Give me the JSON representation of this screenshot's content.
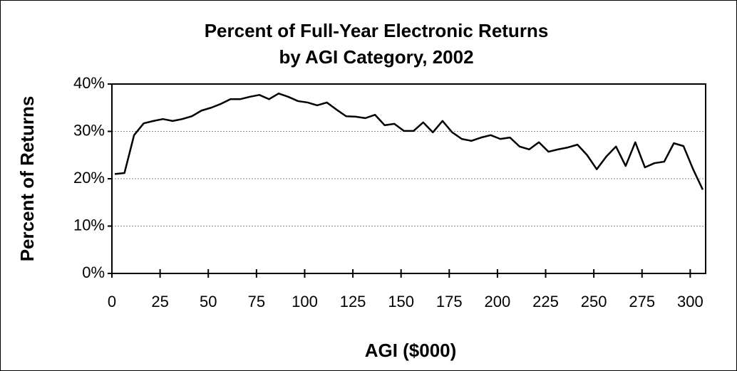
{
  "chart_data": {
    "type": "line",
    "title": [
      "Percent of Full-Year Electronic Returns",
      "by AGI Category, 2002"
    ],
    "xlabel": "AGI ($000)",
    "ylabel": "Percent of Returns",
    "x": [
      1.5,
      6.5,
      11.5,
      16.5,
      21.5,
      26.5,
      31.5,
      36.5,
      41.5,
      46.5,
      51.5,
      56.5,
      61.5,
      66.5,
      71.5,
      76.5,
      81.5,
      86.5,
      91.5,
      96.5,
      101.5,
      106.5,
      111.5,
      116.5,
      121.5,
      126.5,
      131.5,
      136.5,
      141.5,
      146.5,
      151.5,
      156.5,
      161.5,
      166.5,
      171.5,
      176.5,
      181.5,
      186.5,
      191.5,
      196.5,
      201.5,
      206.5,
      211.5,
      216.5,
      221.5,
      226.5,
      231.5,
      236.5,
      241.5,
      246.5,
      251.5,
      256.5,
      261.5,
      266.5,
      271.5,
      276.5,
      281.5,
      286.5,
      291.5,
      296.5,
      301.5,
      306.5
    ],
    "series": [
      {
        "name": "Percent of Returns",
        "color": "#000000",
        "values": [
          21.0,
          21.2,
          29.2,
          31.7,
          32.2,
          32.6,
          32.2,
          32.6,
          33.2,
          34.4,
          35.0,
          35.8,
          36.8,
          36.8,
          37.3,
          37.7,
          36.8,
          38.0,
          37.3,
          36.4,
          36.1,
          35.5,
          36.1,
          34.6,
          33.2,
          33.1,
          32.8,
          33.5,
          31.3,
          31.6,
          30.1,
          30.1,
          31.9,
          29.8,
          32.2,
          29.8,
          28.4,
          28.0,
          28.7,
          29.2,
          28.4,
          28.7,
          26.8,
          26.2,
          27.7,
          25.7,
          26.2,
          26.6,
          27.2,
          25.0,
          22.0,
          24.7,
          26.8,
          22.7,
          27.7,
          22.4,
          23.3,
          23.6,
          27.5,
          26.9,
          22.0,
          17.7
        ]
      }
    ],
    "xlim": [
      0,
      308
    ],
    "xticks": [
      0,
      25,
      50,
      75,
      100,
      125,
      150,
      175,
      200,
      225,
      250,
      275,
      300
    ],
    "ylim": [
      0,
      40
    ],
    "yticks": [
      {
        "value": 0,
        "label": "0%"
      },
      {
        "value": 10,
        "label": "10%"
      },
      {
        "value": 20,
        "label": "20%"
      },
      {
        "value": 30,
        "label": "30%"
      },
      {
        "value": 40,
        "label": "40%"
      }
    ],
    "grid": true
  }
}
